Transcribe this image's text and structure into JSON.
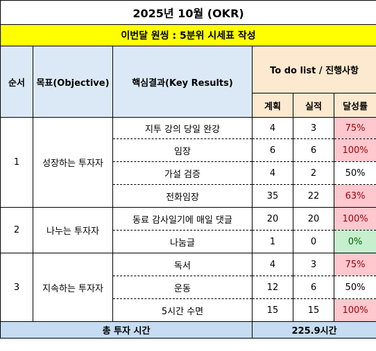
{
  "title": "2025년 10월 (OKR)",
  "subtitle": "이번달 원씽 : 5분위 시세표 작성",
  "headers": {
    "order": "순서",
    "objective": "목표(Objective)",
    "key_results": "핵심결과(Key Results)",
    "todo": "To do list / 진행사항",
    "plan": "계획",
    "actual": "실적",
    "rate": "달성률"
  },
  "groups": [
    {
      "order": "1",
      "objective": "성장하는 투자자",
      "rows": [
        {
          "kr": "지투 강의 당일 완강",
          "plan": "4",
          "actual": "3",
          "rate": "75%",
          "status": "red"
        },
        {
          "kr": "임장",
          "plan": "6",
          "actual": "6",
          "rate": "100%",
          "status": "red"
        },
        {
          "kr": "가설 검증",
          "plan": "4",
          "actual": "2",
          "rate": "50%",
          "status": "plain"
        },
        {
          "kr": "전화임장",
          "plan": "35",
          "actual": "22",
          "rate": "63%",
          "status": "red"
        }
      ]
    },
    {
      "order": "2",
      "objective": "나누는 투자자",
      "rows": [
        {
          "kr": "동료 감사일기에 매일 댓글",
          "plan": "20",
          "actual": "20",
          "rate": "100%",
          "status": "red"
        },
        {
          "kr": "나눔글",
          "plan": "1",
          "actual": "0",
          "rate": "0%",
          "status": "green"
        }
      ]
    },
    {
      "order": "3",
      "objective": "지속하는 투자자",
      "rows": [
        {
          "kr": "독서",
          "plan": "4",
          "actual": "3",
          "rate": "75%",
          "status": "red"
        },
        {
          "kr": "운동",
          "plan": "12",
          "actual": "6",
          "rate": "50%",
          "status": "plain"
        },
        {
          "kr": "5시간 수면",
          "plan": "15",
          "actual": "15",
          "rate": "100%",
          "status": "red"
        }
      ]
    }
  ],
  "footer": {
    "label": "총 투자 시간",
    "value": "225.9시간"
  }
}
